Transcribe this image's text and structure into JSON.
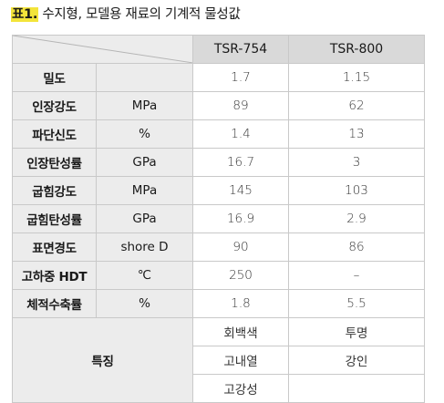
{
  "caption": {
    "tag": "표1.",
    "text": " 수지형, 모델용 재료의 기계적 물성값"
  },
  "columns": [
    "TSR-754",
    "TSR-800"
  ],
  "rows": [
    {
      "label": "밀도",
      "unit": "",
      "v1": "1.7",
      "v2": "1.15"
    },
    {
      "label": "인장강도",
      "unit": "MPa",
      "v1": "89",
      "v2": "62"
    },
    {
      "label": "파단신도",
      "unit": "%",
      "v1": "1.4",
      "v2": "13"
    },
    {
      "label": "인장탄성률",
      "unit": "GPa",
      "v1": "16.7",
      "v2": "3"
    },
    {
      "label": "굽힘강도",
      "unit": "MPa",
      "v1": "145",
      "v2": "103"
    },
    {
      "label": "굽힘탄성률",
      "unit": "GPa",
      "v1": "16.9",
      "v2": "2.9"
    },
    {
      "label": "표면경도",
      "unit": "shore D",
      "v1": "90",
      "v2": "86"
    },
    {
      "label": "고하중 HDT",
      "unit": "℃",
      "v1": "250",
      "v2": "–"
    },
    {
      "label": "체적수축률",
      "unit": "%",
      "v1": "1.8",
      "v2": "5.5"
    }
  ],
  "features": {
    "label": "특징",
    "c1": [
      "회백색",
      "고내열",
      "고강성"
    ],
    "c2": [
      "투명",
      "강인",
      ""
    ]
  }
}
